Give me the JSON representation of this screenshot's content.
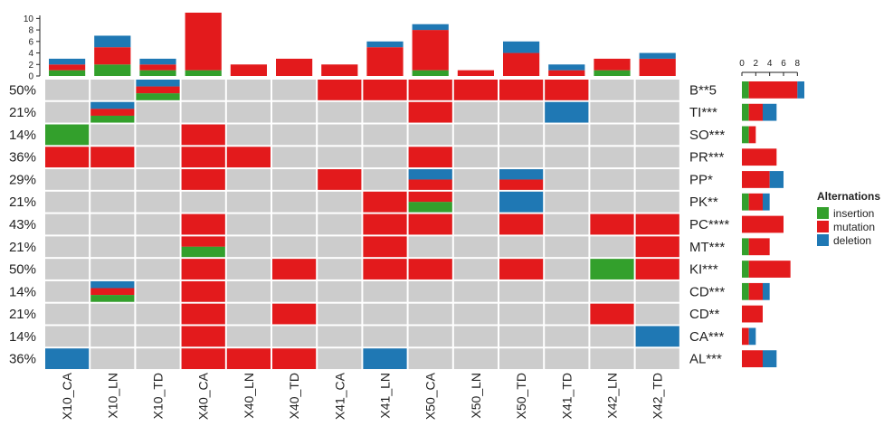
{
  "chart_data": {
    "type": "oncoprint",
    "samples": [
      "X10_CA",
      "X10_LN",
      "X10_TD",
      "X40_CA",
      "X40_LN",
      "X40_TD",
      "X41_CA",
      "X41_LN",
      "X50_CA",
      "X50_LN",
      "X50_TD",
      "X41_TD",
      "X42_LN",
      "X42_TD"
    ],
    "genes": [
      "B**5",
      "TI***",
      "SO***",
      "PR***",
      "PP*",
      "PK**",
      "PC****",
      "MT***",
      "KI***",
      "CD***",
      "CD**",
      "CA***",
      "AL***"
    ],
    "percentages": [
      "50%",
      "21%",
      "14%",
      "36%",
      "29%",
      "21%",
      "43%",
      "21%",
      "50%",
      "14%",
      "21%",
      "14%",
      "36%"
    ],
    "cells": [
      [
        [],
        [],
        [
          "deletion",
          "mutation",
          "insertion"
        ],
        [],
        [],
        [],
        [
          "mutation"
        ],
        [
          "mutation"
        ],
        [
          "mutation"
        ],
        [
          "mutation"
        ],
        [
          "mutation"
        ],
        [
          "mutation"
        ],
        [],
        []
      ],
      [
        [],
        [
          "deletion",
          "mutation",
          "insertion"
        ],
        [],
        [],
        [],
        [],
        [],
        [],
        [
          "mutation"
        ],
        [],
        [],
        [
          "deletion"
        ],
        [],
        []
      ],
      [
        [
          "insertion"
        ],
        [],
        [],
        [
          "mutation"
        ],
        [],
        [],
        [],
        [],
        [],
        [],
        [],
        [],
        [],
        []
      ],
      [
        [
          "mutation"
        ],
        [
          "mutation"
        ],
        [],
        [
          "mutation"
        ],
        [
          "mutation"
        ],
        [],
        [],
        [],
        [
          "mutation"
        ],
        [],
        [],
        [],
        [],
        []
      ],
      [
        [],
        [],
        [],
        [
          "mutation"
        ],
        [],
        [],
        [
          "mutation"
        ],
        [],
        [
          "deletion",
          "mutation"
        ],
        [],
        [
          "deletion",
          "mutation"
        ],
        [],
        [],
        []
      ],
      [
        [],
        [],
        [],
        [],
        [],
        [],
        [],
        [
          "mutation"
        ],
        [
          "mutation",
          "insertion"
        ],
        [],
        [
          "deletion"
        ],
        [],
        [],
        []
      ],
      [
        [],
        [],
        [],
        [
          "mutation"
        ],
        [],
        [],
        [],
        [
          "mutation"
        ],
        [
          "mutation"
        ],
        [],
        [
          "mutation"
        ],
        [],
        [
          "mutation"
        ],
        [
          "mutation"
        ]
      ],
      [
        [],
        [],
        [],
        [
          "mutation",
          "insertion"
        ],
        [],
        [],
        [],
        [
          "mutation"
        ],
        [],
        [],
        [],
        [],
        [],
        [
          "mutation"
        ]
      ],
      [
        [],
        [],
        [],
        [
          "mutation"
        ],
        [],
        [
          "mutation"
        ],
        [],
        [
          "mutation"
        ],
        [
          "mutation"
        ],
        [],
        [
          "mutation"
        ],
        [],
        [
          "insertion"
        ],
        [
          "mutation"
        ]
      ],
      [
        [],
        [
          "deletion",
          "mutation",
          "insertion"
        ],
        [],
        [
          "mutation"
        ],
        [],
        [],
        [],
        [],
        [],
        [],
        [],
        [],
        [],
        []
      ],
      [
        [],
        [],
        [],
        [
          "mutation"
        ],
        [],
        [
          "mutation"
        ],
        [],
        [],
        [],
        [],
        [],
        [],
        [
          "mutation"
        ],
        []
      ],
      [
        [],
        [],
        [],
        [
          "mutation"
        ],
        [],
        [],
        [],
        [],
        [],
        [],
        [],
        [],
        [],
        [
          "deletion"
        ]
      ],
      [
        [
          "deletion"
        ],
        [],
        [],
        [
          "mutation"
        ],
        [
          "mutation"
        ],
        [
          "mutation"
        ],
        [],
        [
          "deletion"
        ],
        [],
        [],
        [],
        [],
        [],
        []
      ]
    ],
    "top_bar": {
      "insertion": [
        1,
        2,
        1,
        1,
        0,
        0,
        0,
        0,
        1,
        0,
        0,
        0,
        1,
        0
      ],
      "mutation": [
        1,
        3,
        1,
        10,
        2,
        3,
        2,
        5,
        7,
        1,
        4,
        1,
        2,
        3
      ],
      "deletion": [
        1,
        2,
        1,
        0,
        0,
        0,
        0,
        1,
        1,
        0,
        2,
        1,
        0,
        1
      ],
      "ylim": [
        0,
        11
      ],
      "ticks": [
        0,
        2,
        4,
        6,
        8,
        10
      ]
    },
    "right_bar": {
      "insertion": [
        1,
        1,
        1,
        0,
        0,
        1,
        0,
        1,
        1,
        1,
        0,
        0,
        0
      ],
      "mutation": [
        7,
        2,
        1,
        5,
        4,
        2,
        6,
        3,
        6,
        2,
        3,
        1,
        3
      ],
      "deletion": [
        1,
        2,
        0,
        0,
        2,
        1,
        0,
        0,
        0,
        1,
        0,
        1,
        2
      ],
      "xlim": [
        0,
        9
      ],
      "ticks": [
        0,
        2,
        4,
        6,
        8
      ]
    },
    "legend": {
      "title": "Alternations",
      "items": [
        {
          "key": "insertion",
          "label": "insertion"
        },
        {
          "key": "mutation",
          "label": "mutation"
        },
        {
          "key": "deletion",
          "label": "deletion"
        }
      ]
    },
    "colors": {
      "insertion": "#33a02c",
      "mutation": "#e31a1c",
      "deletion": "#1f78b4",
      "background": "#cccccc"
    }
  }
}
